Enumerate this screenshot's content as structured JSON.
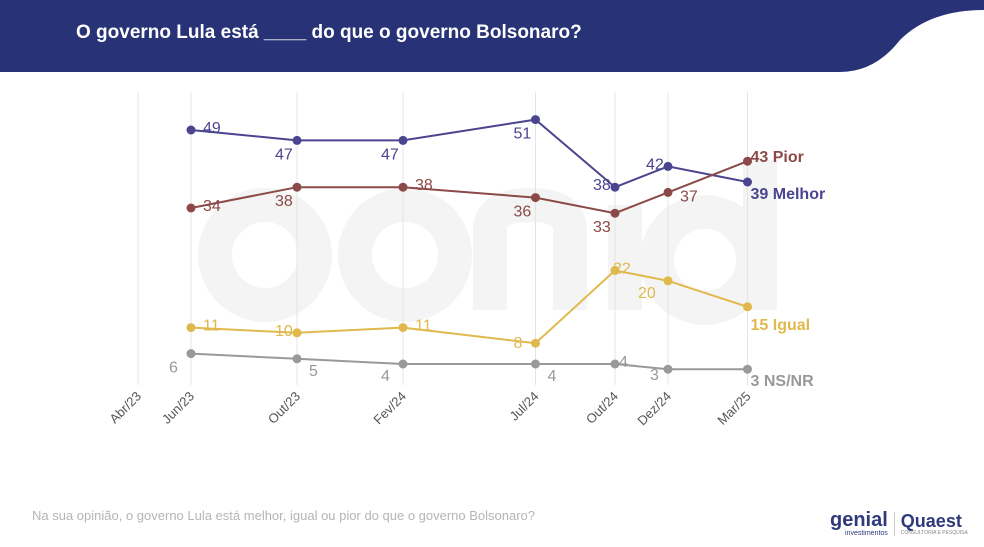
{
  "header": {
    "title": "O governo Lula está ____ do que o governo Bolsonaro?",
    "color": "#283377"
  },
  "footer": {
    "question": "Na sua opinião, o governo Lula está melhor, igual ou pior do que o governo Bolsonaro?"
  },
  "logos": {
    "genial": "genial",
    "genial_sub": "investimentos",
    "quaest": "Quaest",
    "quaest_sub": "CONSULTORIA E PESQUISA"
  },
  "watermark": {
    "main": "genial",
    "sub": "investimentos"
  },
  "chart_data": {
    "type": "line",
    "title": "O governo Lula está ____ do que o governo Bolsonaro?",
    "xlabel": "",
    "ylabel": "",
    "x_ticks": [
      "Abr/23",
      "Jun/23",
      "Out/23",
      "Fev/24",
      "Jul/24",
      "Out/24",
      "Dez/24",
      "Mar/25"
    ],
    "x": [
      "Jun/23",
      "Out/23",
      "Fev/24",
      "Jul/24",
      "Out/24",
      "Dez/24",
      "Mar/25"
    ],
    "grid": "vertical",
    "legend": "end-of-line labels",
    "series": [
      {
        "name": "Melhor",
        "color": "#4b4590",
        "values": [
          49,
          47,
          47,
          51,
          38,
          42,
          39
        ]
      },
      {
        "name": "Pior",
        "color": "#8b4a48",
        "values": [
          34,
          38,
          38,
          36,
          33,
          37,
          43
        ]
      },
      {
        "name": "Igual",
        "color": "#e0b84c",
        "values": [
          11,
          10,
          11,
          8,
          22,
          20,
          15
        ]
      },
      {
        "name": "NS/NR",
        "color": "#999999",
        "values": [
          6,
          5,
          4,
          4,
          4,
          3,
          3
        ]
      }
    ]
  }
}
